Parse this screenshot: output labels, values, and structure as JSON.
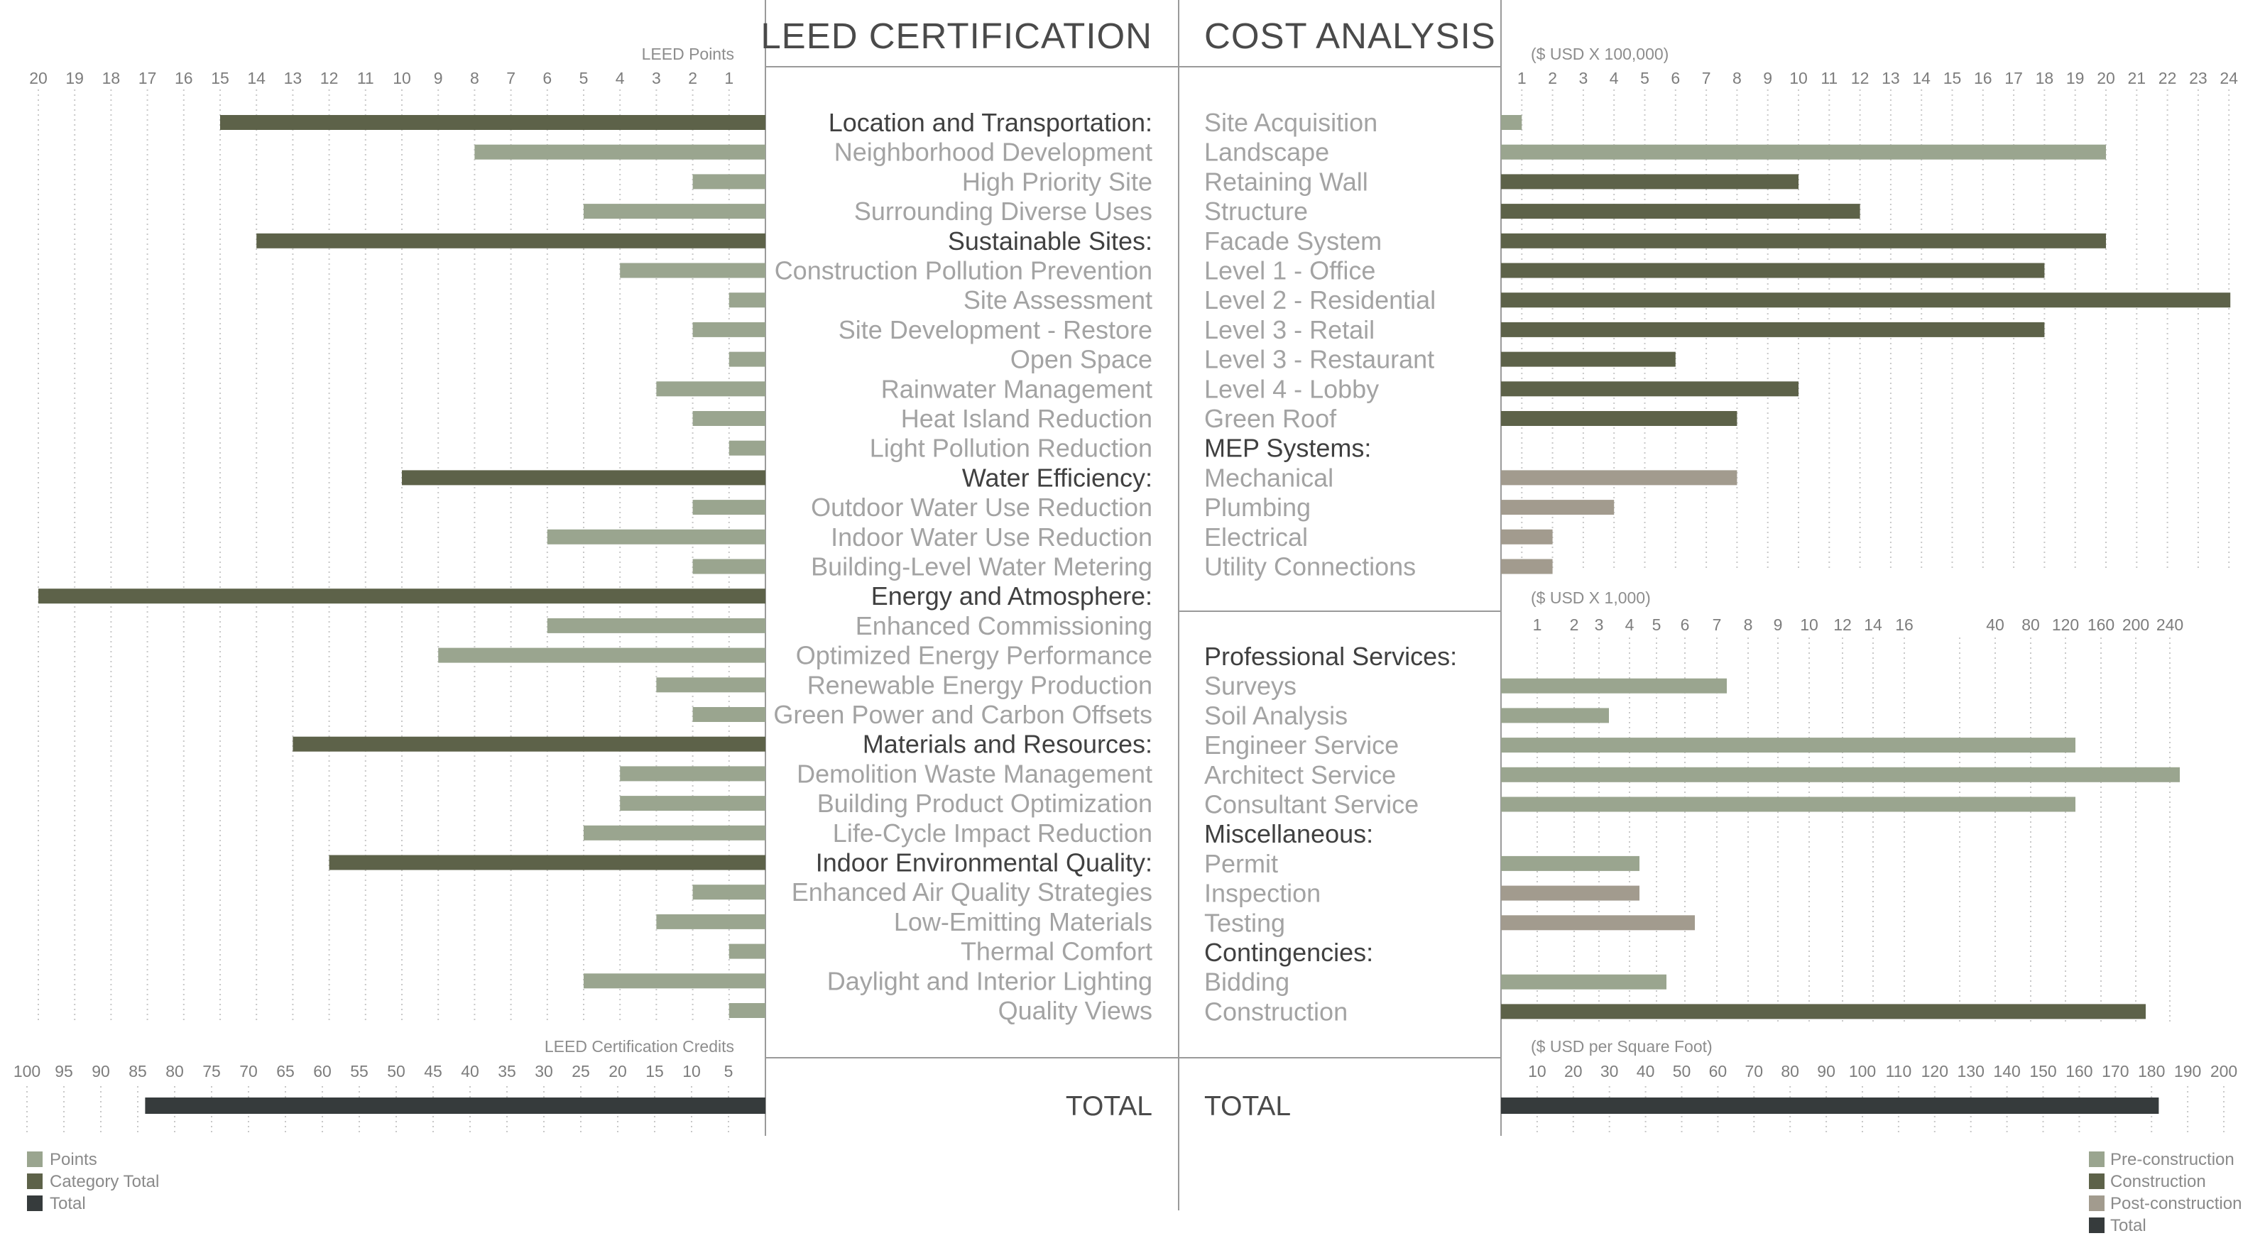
{
  "colors": {
    "points": "#9aa58f",
    "category_total": "#5d6249",
    "total": "#363b3c",
    "pre_construction": "#9aa58f",
    "construction": "#5d6249",
    "post_construction": "#a29b8e",
    "label_primary": "#404040",
    "label_secondary": "#a3a3a3",
    "grid": "#c8c8c8",
    "divider": "#9a9a9a"
  },
  "headers": {
    "leed": "LEED CERTIFICATION",
    "cost": "COST ANALYSIS"
  },
  "totals": {
    "leed_label": "TOTAL",
    "cost_label": "TOTAL"
  },
  "legend_left": [
    {
      "label": "Points",
      "color_key": "points"
    },
    {
      "label": "Category Total",
      "color_key": "category_total"
    },
    {
      "label": "Total",
      "color_key": "total"
    }
  ],
  "legend_right": [
    {
      "label": "Pre-construction",
      "color_key": "pre_construction"
    },
    {
      "label": "Construction",
      "color_key": "construction"
    },
    {
      "label": "Post-construction",
      "color_key": "post_construction"
    },
    {
      "label": "Total",
      "color_key": "total"
    }
  ],
  "chart_data": [
    {
      "id": "leed_points",
      "type": "bar",
      "orientation": "horizontal-reversed",
      "title": "LEED CERTIFICATION",
      "xlabel": "LEED Points",
      "xlim": [
        0,
        20
      ],
      "ticks": [
        "20",
        "19",
        "18",
        "17",
        "16",
        "15",
        "14",
        "13",
        "12",
        "11",
        "10",
        "9",
        "8",
        "7",
        "6",
        "5",
        "4",
        "3",
        "2",
        "1"
      ],
      "grid": true,
      "categories": [
        {
          "label": "Location and Transportation:",
          "value": 15,
          "kind": "category_total"
        },
        {
          "label": "Neighborhood Development",
          "value": 8,
          "kind": "points"
        },
        {
          "label": "High Priority Site",
          "value": 2,
          "kind": "points"
        },
        {
          "label": "Surrounding Diverse Uses",
          "value": 5,
          "kind": "points"
        },
        {
          "label": "Sustainable Sites:",
          "value": 14,
          "kind": "category_total"
        },
        {
          "label": "Construction Pollution Prevention",
          "value": 4,
          "kind": "points"
        },
        {
          "label": "Site Assessment",
          "value": 1,
          "kind": "points"
        },
        {
          "label": "Site Development - Restore",
          "value": 2,
          "kind": "points"
        },
        {
          "label": "Open Space",
          "value": 1,
          "kind": "points"
        },
        {
          "label": "Rainwater Management",
          "value": 3,
          "kind": "points"
        },
        {
          "label": "Heat Island Reduction",
          "value": 2,
          "kind": "points"
        },
        {
          "label": "Light Pollution Reduction",
          "value": 1,
          "kind": "points"
        },
        {
          "label": "Water Efficiency:",
          "value": 10,
          "kind": "category_total"
        },
        {
          "label": "Outdoor Water Use Reduction",
          "value": 2,
          "kind": "points"
        },
        {
          "label": "Indoor  Water Use Reduction",
          "value": 6,
          "kind": "points"
        },
        {
          "label": "Building-Level Water Metering",
          "value": 2,
          "kind": "points"
        },
        {
          "label": "Energy and Atmosphere:",
          "value": 20,
          "kind": "category_total"
        },
        {
          "label": "Enhanced Commissioning",
          "value": 6,
          "kind": "points"
        },
        {
          "label": "Optimized Energy Performance",
          "value": 9,
          "kind": "points"
        },
        {
          "label": "Renewable Energy Production",
          "value": 3,
          "kind": "points"
        },
        {
          "label": "Green Power and Carbon Offsets",
          "value": 2,
          "kind": "points"
        },
        {
          "label": "Materials and Resources:",
          "value": 13,
          "kind": "category_total"
        },
        {
          "label": "Demolition Waste Management",
          "value": 4,
          "kind": "points"
        },
        {
          "label": "Building Product Optimization",
          "value": 4,
          "kind": "points"
        },
        {
          "label": "Life-Cycle Impact Reduction",
          "value": 5,
          "kind": "points"
        },
        {
          "label": "Indoor Environmental Quality:",
          "value": 12,
          "kind": "category_total"
        },
        {
          "label": "Enhanced Air Quality Strategies",
          "value": 2,
          "kind": "points"
        },
        {
          "label": "Low-Emitting Materials",
          "value": 3,
          "kind": "points"
        },
        {
          "label": "Thermal Comfort",
          "value": 1,
          "kind": "points"
        },
        {
          "label": "Daylight and Interior Lighting",
          "value": 5,
          "kind": "points"
        },
        {
          "label": "Quality Views",
          "value": 1,
          "kind": "points"
        }
      ]
    },
    {
      "id": "leed_total",
      "type": "bar",
      "orientation": "horizontal-reversed",
      "xlabel": "LEED Certification Credits",
      "xlim": [
        0,
        100
      ],
      "ticks": [
        "100",
        "95",
        "90",
        "85",
        "80",
        "75",
        "70",
        "65",
        "60",
        "55",
        "50",
        "45",
        "40",
        "35",
        "30",
        "25",
        "20",
        "15",
        "10",
        "5"
      ],
      "grid": true,
      "categories": [
        {
          "label": "TOTAL",
          "value": 84,
          "kind": "total"
        }
      ]
    },
    {
      "id": "cost_construction",
      "type": "bar",
      "orientation": "horizontal",
      "xlabel": "($ USD X 100,000)",
      "xlim": [
        0,
        24
      ],
      "ticks": [
        "1",
        "2",
        "3",
        "4",
        "5",
        "6",
        "7",
        "8",
        "9",
        "10",
        "11",
        "12",
        "13",
        "14",
        "15",
        "16",
        "17",
        "18",
        "19",
        "20",
        "21",
        "22",
        "23",
        "24"
      ],
      "grid": true,
      "categories": [
        {
          "label": "Site Acquisition",
          "value": 1,
          "kind": "pre_construction"
        },
        {
          "label": "Landscape",
          "value": 20,
          "kind": "pre_construction"
        },
        {
          "label": "Retaining Wall",
          "value": 10,
          "kind": "construction"
        },
        {
          "label": "Structure",
          "value": 12,
          "kind": "construction"
        },
        {
          "label": "Facade System",
          "value": 20,
          "kind": "construction"
        },
        {
          "label": "Level 1 - Office",
          "value": 18,
          "kind": "construction"
        },
        {
          "label": "Level 2 - Residential",
          "value": 24,
          "kind": "construction"
        },
        {
          "label": "Level 3 - Retail",
          "value": 18,
          "kind": "construction"
        },
        {
          "label": "Level 3 - Restaurant",
          "value": 6,
          "kind": "construction"
        },
        {
          "label": "Level 4 - Lobby",
          "value": 10,
          "kind": "construction"
        },
        {
          "label": "Green Roof",
          "value": 8,
          "kind": "construction"
        },
        {
          "label": "MEP Systems:",
          "value": null,
          "kind": "heading"
        },
        {
          "label": "Mechanical",
          "value": 8,
          "kind": "post_construction"
        },
        {
          "label": "Plumbing",
          "value": 4,
          "kind": "post_construction"
        },
        {
          "label": "Electrical",
          "value": 2,
          "kind": "post_construction"
        },
        {
          "label": "Utility Connections",
          "value": 2,
          "kind": "post_construction"
        }
      ]
    },
    {
      "id": "cost_services",
      "type": "bar",
      "orientation": "horizontal",
      "xlabel": "($ USD X 1,000)",
      "scale": "nonlinear",
      "ticks": [
        "1",
        "2",
        "3",
        "4",
        "5",
        "6",
        "7",
        "8",
        "9",
        "10",
        "12",
        "14",
        "16",
        "",
        "40",
        "80",
        "120",
        "160",
        "200",
        "240"
      ],
      "tick_values": [
        1,
        2,
        3,
        4,
        5,
        6,
        7,
        8,
        9,
        10,
        12,
        14,
        16,
        null,
        40,
        80,
        120,
        160,
        200,
        240
      ],
      "grid": true,
      "categories": [
        {
          "label": "Professional Services:",
          "value": null,
          "kind": "heading"
        },
        {
          "label": "Surveys",
          "value": 7,
          "kind": "pre_construction"
        },
        {
          "label": "Soil Analysis",
          "value": 3,
          "kind": "pre_construction"
        },
        {
          "label": "Engineer Service",
          "value": 120,
          "kind": "pre_construction"
        },
        {
          "label": "Architect Service",
          "value": 240,
          "kind": "pre_construction"
        },
        {
          "label": "Consultant Service",
          "value": 120,
          "kind": "pre_construction"
        },
        {
          "label": "Miscellaneous:",
          "value": null,
          "kind": "heading"
        },
        {
          "label": "Permit",
          "value": 4,
          "kind": "pre_construction"
        },
        {
          "label": "Inspection",
          "value": 4,
          "kind": "post_construction"
        },
        {
          "label": "Testing",
          "value": 6,
          "kind": "post_construction"
        },
        {
          "label": "Contingencies:",
          "value": null,
          "kind": "heading"
        },
        {
          "label": "Bidding",
          "value": 5,
          "kind": "pre_construction"
        },
        {
          "label": "Construction",
          "value": 200,
          "kind": "construction"
        }
      ]
    },
    {
      "id": "cost_total",
      "type": "bar",
      "orientation": "horizontal",
      "xlabel": "($ USD per Square Foot)",
      "ticks": [
        "10",
        "20",
        "30",
        "40",
        "50",
        "60",
        "70",
        "80",
        "90",
        "100",
        "110",
        "120",
        "130",
        "140",
        "150",
        "160",
        "170",
        "180",
        "190",
        "200"
      ],
      "xlim": [
        0,
        200
      ],
      "grid": true,
      "categories": [
        {
          "label": "TOTAL",
          "value": 182,
          "kind": "total"
        }
      ]
    }
  ]
}
